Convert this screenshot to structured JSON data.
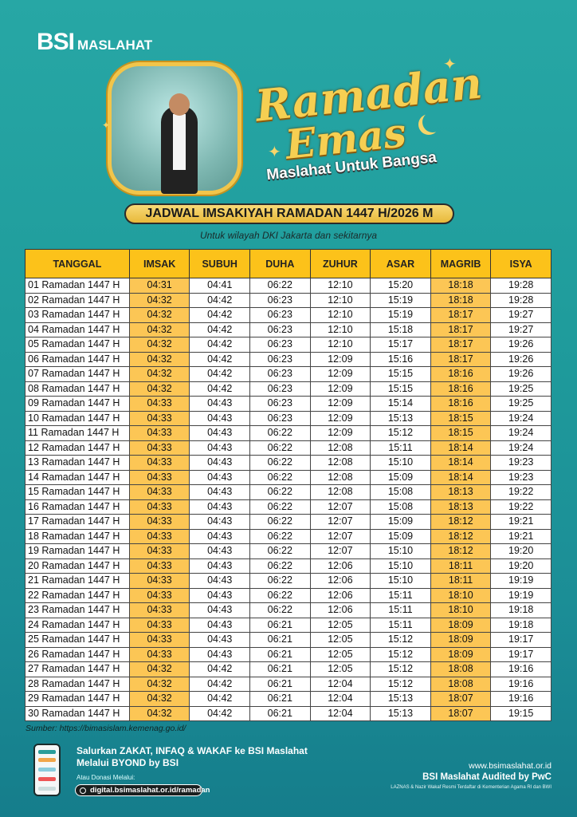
{
  "brand": {
    "logo_main": "BSI",
    "logo_sub": "MASLAHAT"
  },
  "campaign": {
    "line1": "Ramadan",
    "line2": "Emas",
    "tagline": "Maslahat Untuk Bangsa"
  },
  "heading": "JADWAL IMSAKIYAH RAMADAN 1447 H/2026 M",
  "subheading": "Untuk wilayah DKI Jakarta dan sekitarnya",
  "colors": {
    "header": "#fcc21a",
    "highlight": "#fcc655",
    "background": "#1f9c9c"
  },
  "table": {
    "columns": [
      "TANGGAL",
      "IMSAK",
      "SUBUH",
      "DUHA",
      "ZUHUR",
      "ASAR",
      "MAGRIB",
      "ISYA"
    ],
    "highlighted_columns": [
      "IMSAK",
      "MAGRIB"
    ],
    "rows": [
      [
        "01 Ramadan 1447 H",
        "04:31",
        "04:41",
        "06:22",
        "12:10",
        "15:20",
        "18:18",
        "19:28"
      ],
      [
        "02 Ramadan 1447 H",
        "04:32",
        "04:42",
        "06:23",
        "12:10",
        "15:19",
        "18:18",
        "19:28"
      ],
      [
        "03 Ramadan 1447 H",
        "04:32",
        "04:42",
        "06:23",
        "12:10",
        "15:19",
        "18:17",
        "19:27"
      ],
      [
        "04 Ramadan 1447 H",
        "04:32",
        "04:42",
        "06:23",
        "12:10",
        "15:18",
        "18:17",
        "19:27"
      ],
      [
        "05 Ramadan 1447 H",
        "04:32",
        "04:42",
        "06:23",
        "12:10",
        "15:17",
        "18:17",
        "19:26"
      ],
      [
        "06 Ramadan 1447 H",
        "04:32",
        "04:42",
        "06:23",
        "12:09",
        "15:16",
        "18:17",
        "19:26"
      ],
      [
        "07 Ramadan 1447 H",
        "04:32",
        "04:42",
        "06:23",
        "12:09",
        "15:15",
        "18:16",
        "19:26"
      ],
      [
        "08 Ramadan 1447 H",
        "04:32",
        "04:42",
        "06:23",
        "12:09",
        "15:15",
        "18:16",
        "19:25"
      ],
      [
        "09 Ramadan 1447 H",
        "04:33",
        "04:43",
        "06:23",
        "12:09",
        "15:14",
        "18:16",
        "19:25"
      ],
      [
        "10 Ramadan 1447 H",
        "04:33",
        "04:43",
        "06:23",
        "12:09",
        "15:13",
        "18:15",
        "19:24"
      ],
      [
        "11 Ramadan 1447 H",
        "04:33",
        "04:43",
        "06:22",
        "12:09",
        "15:12",
        "18:15",
        "19:24"
      ],
      [
        "12 Ramadan 1447 H",
        "04:33",
        "04:43",
        "06:22",
        "12:08",
        "15:11",
        "18:14",
        "19:24"
      ],
      [
        "13 Ramadan 1447 H",
        "04:33",
        "04:43",
        "06:22",
        "12:08",
        "15:10",
        "18:14",
        "19:23"
      ],
      [
        "14 Ramadan 1447 H",
        "04:33",
        "04:43",
        "06:22",
        "12:08",
        "15:09",
        "18:14",
        "19:23"
      ],
      [
        "15 Ramadan 1447 H",
        "04:33",
        "04:43",
        "06:22",
        "12:08",
        "15:08",
        "18:13",
        "19:22"
      ],
      [
        "16 Ramadan 1447 H",
        "04:33",
        "04:43",
        "06:22",
        "12:07",
        "15:08",
        "18:13",
        "19:22"
      ],
      [
        "17 Ramadan 1447 H",
        "04:33",
        "04:43",
        "06:22",
        "12:07",
        "15:09",
        "18:12",
        "19:21"
      ],
      [
        "18 Ramadan 1447 H",
        "04:33",
        "04:43",
        "06:22",
        "12:07",
        "15:09",
        "18:12",
        "19:21"
      ],
      [
        "19 Ramadan 1447 H",
        "04:33",
        "04:43",
        "06:22",
        "12:07",
        "15:10",
        "18:12",
        "19:20"
      ],
      [
        "20 Ramadan 1447 H",
        "04:33",
        "04:43",
        "06:22",
        "12:06",
        "15:10",
        "18:11",
        "19:20"
      ],
      [
        "21 Ramadan 1447 H",
        "04:33",
        "04:43",
        "06:22",
        "12:06",
        "15:10",
        "18:11",
        "19:19"
      ],
      [
        "22 Ramadan 1447 H",
        "04:33",
        "04:43",
        "06:22",
        "12:06",
        "15:11",
        "18:10",
        "19:19"
      ],
      [
        "23 Ramadan 1447 H",
        "04:33",
        "04:43",
        "06:22",
        "12:06",
        "15:11",
        "18:10",
        "19:18"
      ],
      [
        "24 Ramadan 1447 H",
        "04:33",
        "04:43",
        "06:21",
        "12:05",
        "15:11",
        "18:09",
        "19:18"
      ],
      [
        "25 Ramadan 1447 H",
        "04:33",
        "04:43",
        "06:21",
        "12:05",
        "15:12",
        "18:09",
        "19:17"
      ],
      [
        "26 Ramadan 1447 H",
        "04:33",
        "04:43",
        "06:21",
        "12:05",
        "15:12",
        "18:09",
        "19:17"
      ],
      [
        "27 Ramadan 1447 H",
        "04:32",
        "04:42",
        "06:21",
        "12:05",
        "15:12",
        "18:08",
        "19:16"
      ],
      [
        "28 Ramadan 1447 H",
        "04:32",
        "04:42",
        "06:21",
        "12:04",
        "15:12",
        "18:08",
        "19:16"
      ],
      [
        "29 Ramadan 1447 H",
        "04:32",
        "04:42",
        "06:21",
        "12:04",
        "15:13",
        "18:07",
        "19:16"
      ],
      [
        "30 Ramadan 1447 H",
        "04:32",
        "04:42",
        "06:21",
        "12:04",
        "15:13",
        "18:07",
        "19:15"
      ]
    ]
  },
  "source": "Sumber: https://bimasislam.kemenag.go.id/",
  "footer": {
    "promo_line1": "Salurkan ZAKAT, INFAQ & WAKAF  ke BSI Maslahat",
    "promo_line2": "Melalui BYOND by BSI",
    "donate_label": "Atau Donasi Melalui:",
    "donate_url": "digital.bsimaslahat.or.id/ramadan",
    "search_icon": "search-icon",
    "website": "www.bsimaslahat.or.id",
    "audit": "BSI Maslahat Audited by PwC",
    "legal": "LAZNAS & Nazir Wakaf Resmi Terdaftar di Kementerian Agama RI dan BWI"
  }
}
